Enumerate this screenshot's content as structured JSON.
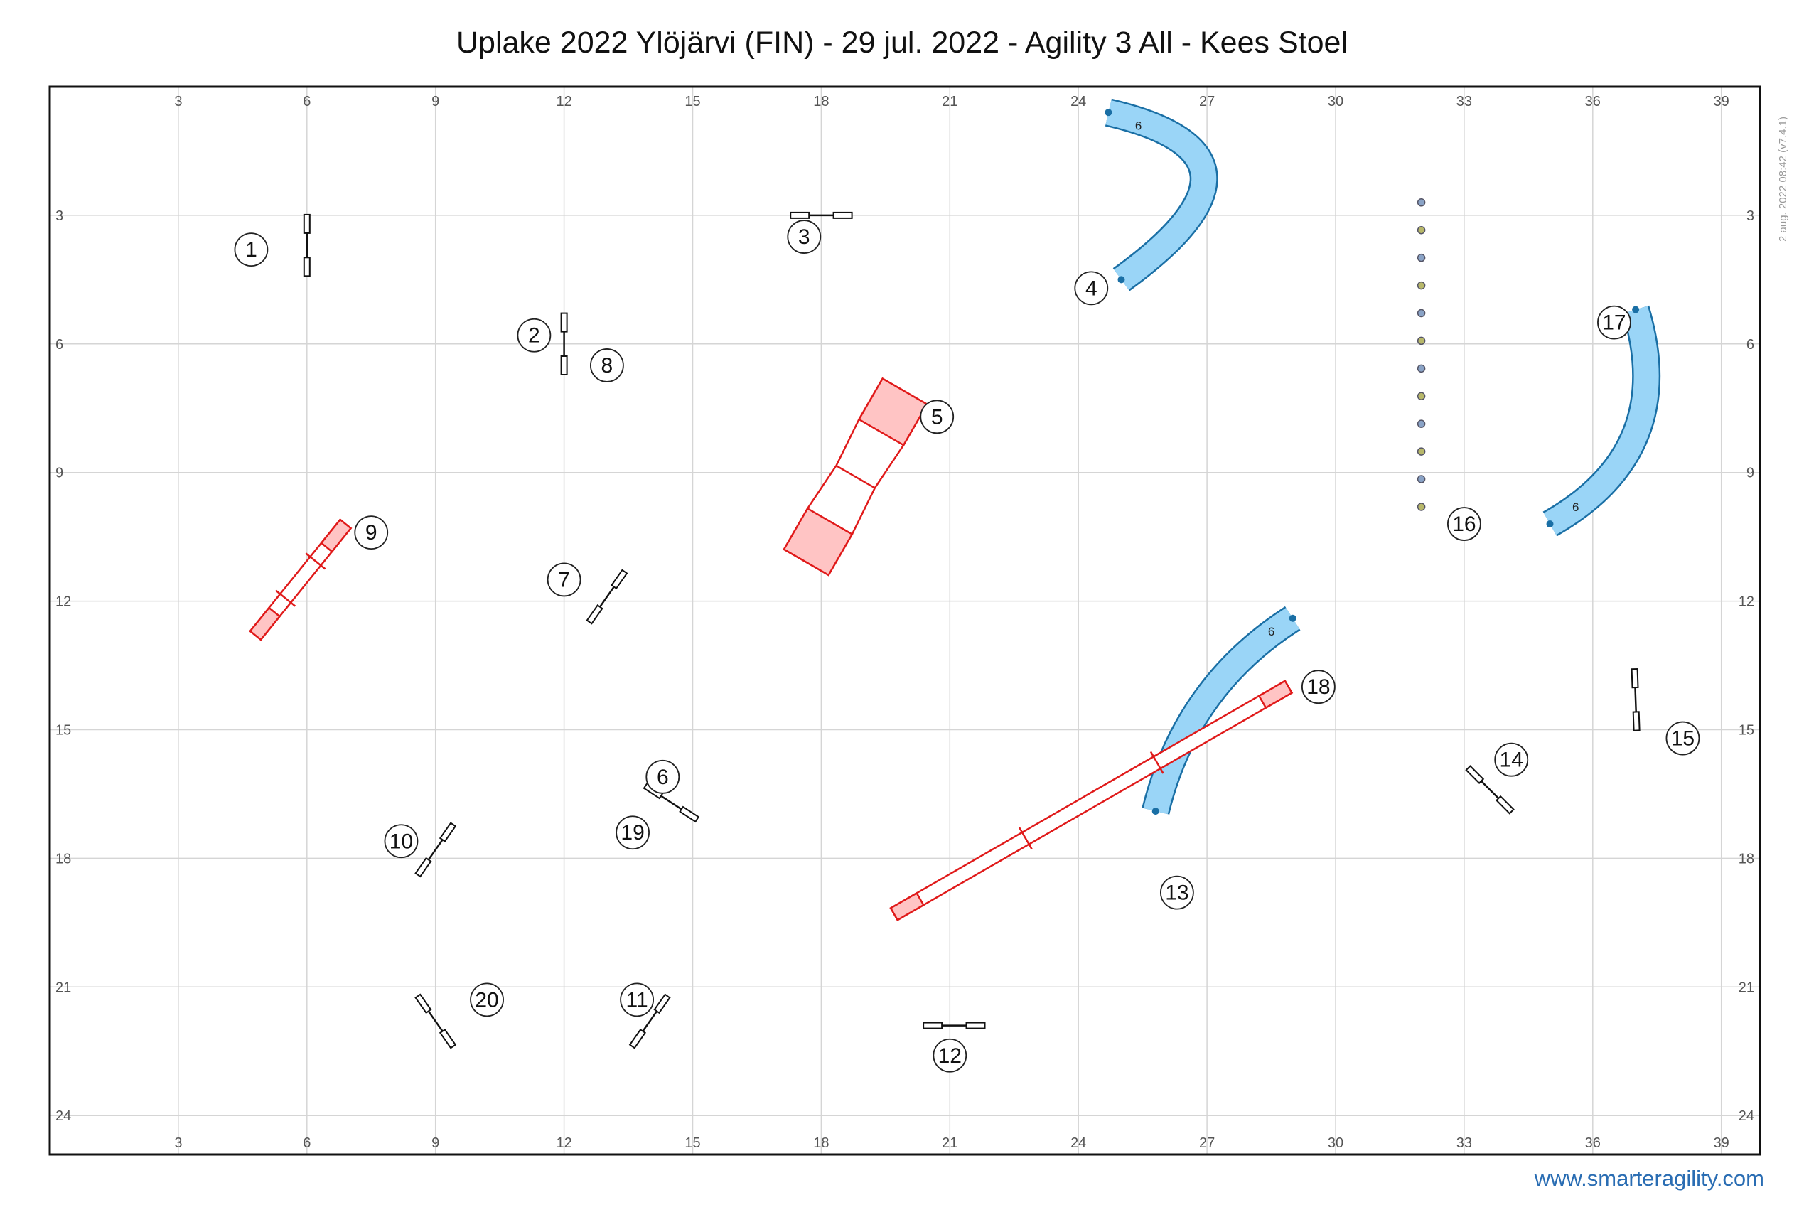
{
  "header": {
    "title": "Uplake 2022 Ylöjärvi (FIN) - 29 jul. 2022 - Agility 3 All - Kees Stoel",
    "version": "2 aug. 2022 08:42  (v7.4.1)",
    "website": "www.smarteragility.com"
  },
  "grid": {
    "x_ticks": [
      3,
      6,
      9,
      12,
      15,
      18,
      21,
      24,
      27,
      30,
      33,
      36,
      39
    ],
    "y_ticks": [
      3,
      6,
      9,
      12,
      15,
      18,
      21,
      24
    ],
    "x_range": [
      0,
      40
    ],
    "y_range": [
      0,
      25
    ]
  },
  "colors": {
    "grid": "#d5d5d5",
    "jump": "#111111",
    "contact": "#e01a1a",
    "contact_fill": "#ffc4c4",
    "tunnel_fill": "#9ad5f7",
    "tunnel_stroke": "#1a6fa5",
    "pole": "#7b8ca6"
  },
  "jumps": [
    {
      "x": 6.0,
      "y": 3.7,
      "angle": 90
    },
    {
      "x": 18.0,
      "y": 3.0,
      "angle": 0
    },
    {
      "x": 12.0,
      "y": 6.0,
      "angle": 90
    },
    {
      "x": 14.5,
      "y": 16.7,
      "angle": 33
    },
    {
      "x": 13.0,
      "y": 11.9,
      "angle": -55
    },
    {
      "x": 9.0,
      "y": 17.8,
      "angle": -55
    },
    {
      "x": 14.0,
      "y": 21.8,
      "angle": -55
    },
    {
      "x": 21.1,
      "y": 21.9,
      "angle": 0
    },
    {
      "x": 33.6,
      "y": 16.4,
      "angle": 45
    },
    {
      "x": 37.0,
      "y": 14.3,
      "angle": 88
    },
    {
      "x": 9.0,
      "y": 21.8,
      "angle": 55
    }
  ],
  "tunnels": [
    {
      "start": [
        24.7,
        0.6
      ],
      "control": [
        29.0,
        1.6
      ],
      "end": [
        25.0,
        4.5
      ],
      "length": "6",
      "label_pos": [
        25.4,
        0.9
      ]
    },
    {
      "start": [
        37.0,
        5.2
      ],
      "control": [
        38.0,
        8.5
      ],
      "end": [
        35.0,
        10.2
      ],
      "length": "6",
      "label_pos": [
        35.6,
        9.8
      ]
    },
    {
      "start": [
        29.0,
        12.4
      ],
      "control": [
        26.5,
        14.0
      ],
      "end": [
        25.8,
        16.9
      ],
      "length": "6",
      "label_pos": [
        28.5,
        12.7
      ]
    }
  ],
  "aframe": {
    "x": 18.8,
    "y": 9.1,
    "angle": -60,
    "length": 4.6,
    "width": 1.2,
    "contact": 1.1
  },
  "dogwalks": [
    {
      "from": [
        4.8,
        12.8
      ],
      "to": [
        6.9,
        10.2
      ],
      "width": 0.32,
      "contact": 0.7
    },
    {
      "from": [
        19.7,
        19.3
      ],
      "to": [
        28.9,
        14.0
      ],
      "width": 0.32,
      "contact": 0.7
    }
  ],
  "weave": {
    "x": 32.0,
    "y_start": 2.7,
    "y_end": 9.8,
    "count": 12
  },
  "numbers": [
    {
      "n": "1",
      "x": 4.7,
      "y": 3.8
    },
    {
      "n": "2",
      "x": 11.3,
      "y": 5.8
    },
    {
      "n": "3",
      "x": 17.6,
      "y": 3.5
    },
    {
      "n": "4",
      "x": 24.3,
      "y": 4.7
    },
    {
      "n": "5",
      "x": 20.7,
      "y": 7.7
    },
    {
      "n": "6",
      "x": 14.3,
      "y": 16.1
    },
    {
      "n": "7",
      "x": 12.0,
      "y": 11.5
    },
    {
      "n": "8",
      "x": 13.0,
      "y": 6.5
    },
    {
      "n": "9",
      "x": 7.5,
      "y": 10.4
    },
    {
      "n": "10",
      "x": 8.2,
      "y": 17.6
    },
    {
      "n": "11",
      "x": 13.7,
      "y": 21.3
    },
    {
      "n": "12",
      "x": 21.0,
      "y": 22.6
    },
    {
      "n": "13",
      "x": 26.3,
      "y": 18.8
    },
    {
      "n": "14",
      "x": 34.1,
      "y": 15.7
    },
    {
      "n": "15",
      "x": 38.1,
      "y": 15.2
    },
    {
      "n": "16",
      "x": 33.0,
      "y": 10.2
    },
    {
      "n": "17",
      "x": 36.5,
      "y": 5.5
    },
    {
      "n": "18",
      "x": 29.6,
      "y": 14.0
    },
    {
      "n": "19",
      "x": 13.6,
      "y": 17.4
    },
    {
      "n": "20",
      "x": 10.2,
      "y": 21.3
    }
  ]
}
